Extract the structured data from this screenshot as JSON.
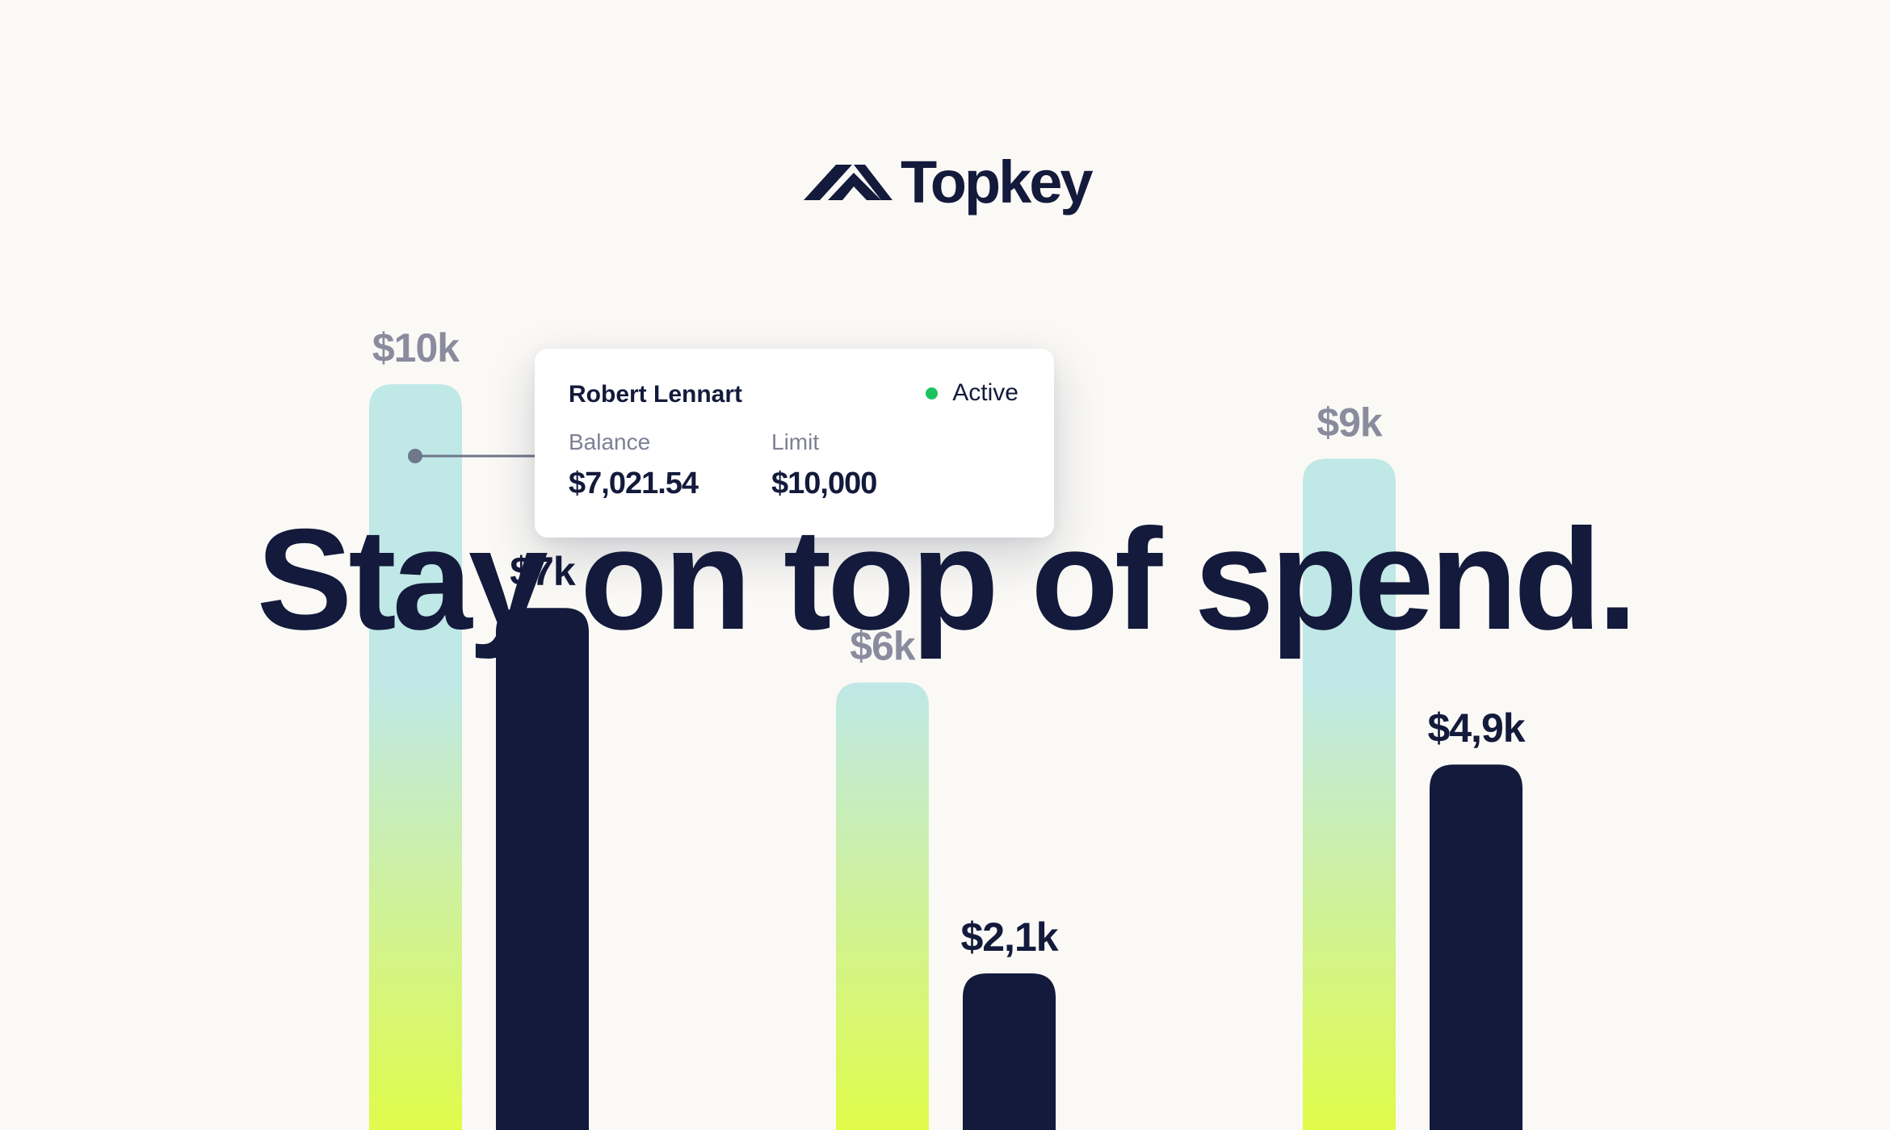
{
  "brand": {
    "name": "Topkey",
    "colors": {
      "navy": "#131a3b",
      "mint": "#bfe8e6",
      "lime": "#e0fb4a",
      "muted": "#8a8c9e",
      "active_green": "#1ec15f",
      "background": "#faf9f6"
    }
  },
  "headline": "Stay on top of spend.",
  "card": {
    "name": "Robert Lennart",
    "status": "Active",
    "balance_label": "Balance",
    "balance_value": "$7,021.54",
    "limit_label": "Limit",
    "limit_value": "$10,000"
  },
  "chart_data": {
    "type": "bar",
    "ylim": [
      0,
      12
    ],
    "unit": "$k",
    "groups": [
      {
        "limit": 10,
        "limit_label": "$10k",
        "spend": 7,
        "spend_label": "$7k"
      },
      {
        "limit": 6,
        "limit_label": "$6k",
        "spend": 2.1,
        "spend_label": "$2,1k"
      },
      {
        "limit": 9,
        "limit_label": "$9k",
        "spend": 4.9,
        "spend_label": "$4,9k"
      }
    ]
  }
}
